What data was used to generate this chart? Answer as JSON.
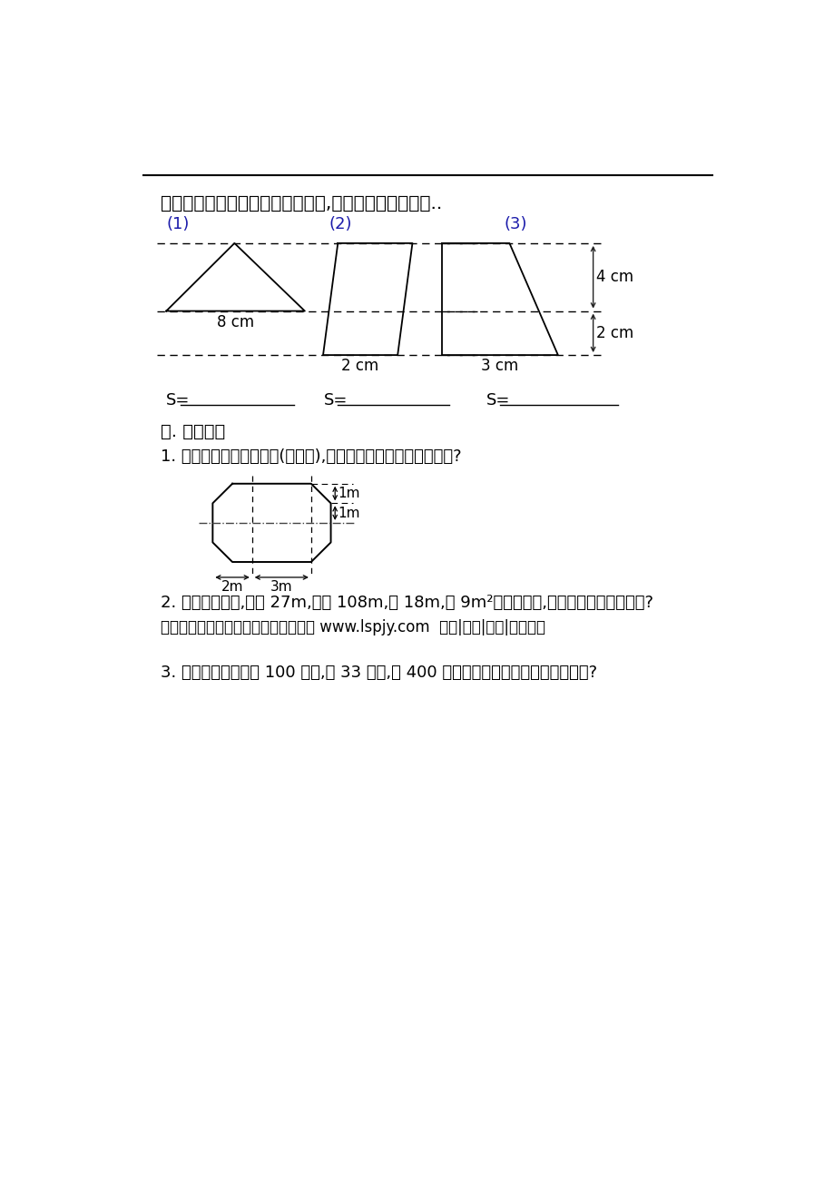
{
  "title_line": "四、先用字母写出下面图形的公式,再计算下面图形面积..",
  "section_labels": [
    "(1)",
    "(2)",
    "(3)"
  ],
  "fig1_dim": "8 cm",
  "fig2_dim": "2 cm",
  "fig3_dim1": "4 cm",
  "fig3_dim2": "2 cm",
  "fig3_dim3": "3 cm",
  "part5_title": "五. 解决问题",
  "prob1": "1. 星光小学建造一个花坦(见下图),这个花坦的面积有多少平方米?",
  "prob2": "2. 一个梯形果园,上底 27m,下底 108m,高 18m,每 9m²栽果树一棵,这个果园栽果树多少棵?",
  "prob2b": "更多免费资源下载绿色圆中小学教育网 www.lspjy.com  课件|教案|试卷|无需注册",
  "prob3": "3. 一条红领巾的底长 100 厘米,高 33 厘米,做 400 条红领巾需要红布多少万平方厘米?",
  "octagon_1m_top": "1m",
  "octagon_1m_mid": "1m",
  "octagon_2m": "2m",
  "octagon_3m": "3m",
  "bg_color": "#ffffff",
  "text_color": "#000000",
  "blue_color": "#1a1aaa",
  "line_color": "#222222"
}
